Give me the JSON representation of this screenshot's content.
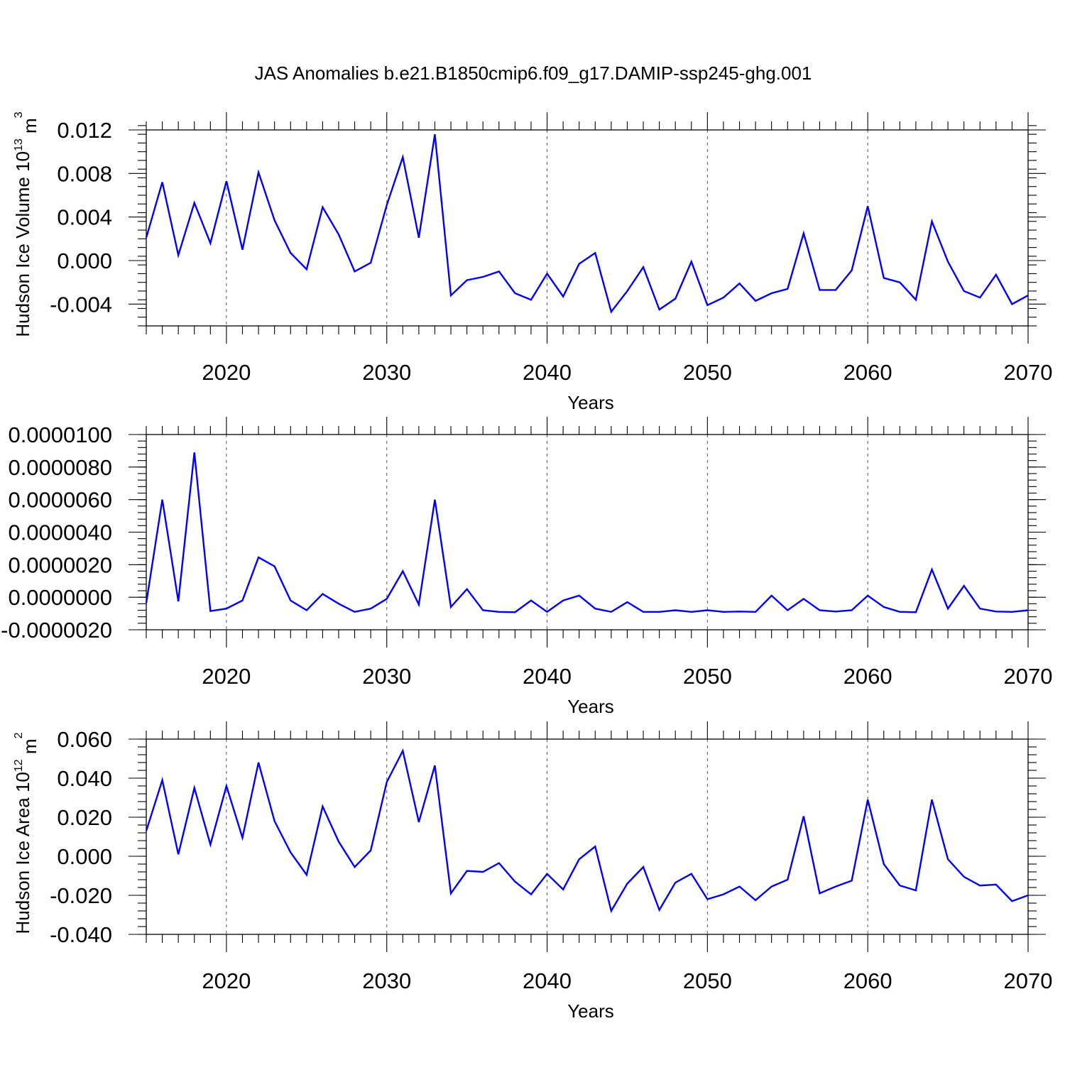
{
  "title": "JAS Anomalies b.e21.B1850cmip6.f09_g17.DAMIP-ssp245-ghg.001",
  "colors": {
    "line": "#0000ff",
    "axis": "#000000",
    "grid": "#555555"
  },
  "chart_data": [
    {
      "type": "line",
      "xlabel": "Years",
      "ylabel": "Hudson Ice Volume 10",
      "ylabel_exp": "13",
      "ylabel_unit": " m",
      "ylabel_unit_exp": "3",
      "xlim": [
        2015,
        2070
      ],
      "ylim": [
        -0.006,
        0.012
      ],
      "xticks": [
        2020,
        2030,
        2040,
        2050,
        2060,
        2070
      ],
      "xtick_labels": [
        "2020",
        "2030",
        "2040",
        "2050",
        "2060",
        "2070"
      ],
      "yticks": [
        -0.004,
        0.0,
        0.004,
        0.008,
        0.012
      ],
      "ytick_labels": [
        "-0.004",
        "0.000",
        "0.004",
        "0.008",
        "0.012"
      ],
      "grid": "vertical dashed at major x ticks",
      "series": [
        {
          "x": [
            2015,
            2016,
            2017,
            2018,
            2019,
            2020,
            2021,
            2022,
            2023,
            2024,
            2025,
            2026,
            2027,
            2028,
            2029,
            2030,
            2031,
            2032,
            2033,
            2034,
            2035,
            2036,
            2037,
            2038,
            2039,
            2040,
            2041,
            2042,
            2043,
            2044,
            2045,
            2046,
            2047,
            2048,
            2049,
            2050,
            2051,
            2052,
            2053,
            2054,
            2055,
            2056,
            2057,
            2058,
            2059,
            2060,
            2061,
            2062,
            2063,
            2064,
            2065,
            2066,
            2067,
            2068,
            2069,
            2070
          ],
          "y": [
            0.0021,
            0.0072,
            0.0005,
            0.0053,
            0.0016,
            0.0073,
            0.001,
            0.0081,
            0.0037,
            0.0007,
            -0.0008,
            0.0049,
            0.0024,
            -0.001,
            -0.0002,
            0.0051,
            0.0095,
            0.0021,
            0.0116,
            -0.0032,
            -0.0018,
            -0.0015,
            -0.001,
            -0.003,
            -0.0036,
            -0.0012,
            -0.0033,
            -0.0003,
            0.0007,
            -0.0047,
            -0.0028,
            -0.0006,
            -0.0045,
            -0.0035,
            -0.0001,
            -0.0041,
            -0.0034,
            -0.0021,
            -0.0037,
            -0.003,
            -0.0026,
            0.0025,
            -0.0027,
            -0.0027,
            -0.0009,
            0.005,
            -0.0016,
            -0.002,
            -0.0036,
            0.0036,
            -0.0001,
            -0.0028,
            -0.0034,
            -0.0013,
            -0.004,
            -0.0032
          ]
        }
      ]
    },
    {
      "type": "line",
      "xlabel": "Years",
      "ylabel": "",
      "xlim": [
        2015,
        2070
      ],
      "ylim": [
        -2e-06,
        1e-05
      ],
      "xticks": [
        2020,
        2030,
        2040,
        2050,
        2060,
        2070
      ],
      "xtick_labels": [
        "2020",
        "2030",
        "2040",
        "2050",
        "2060",
        "2070"
      ],
      "yticks": [
        -2e-06,
        0.0,
        2e-06,
        4e-06,
        6e-06,
        8e-06,
        1e-05
      ],
      "ytick_labels": [
        "-0.0000020",
        "0.0000000",
        "0.0000020",
        "0.0000040",
        "0.0000060",
        "0.0000080",
        "0.0000100"
      ],
      "grid": "vertical dashed at major x ticks",
      "series": [
        {
          "x": [
            2015,
            2016,
            2017,
            2018,
            2019,
            2020,
            2021,
            2022,
            2023,
            2024,
            2025,
            2026,
            2027,
            2028,
            2029,
            2030,
            2031,
            2032,
            2033,
            2034,
            2035,
            2036,
            2037,
            2038,
            2039,
            2040,
            2041,
            2042,
            2043,
            2044,
            2045,
            2046,
            2047,
            2048,
            2049,
            2050,
            2051,
            2052,
            2053,
            2054,
            2055,
            2056,
            2057,
            2058,
            2059,
            2060,
            2061,
            2062,
            2063,
            2064,
            2065,
            2066,
            2067,
            2068,
            2069,
            2070
          ],
          "y": [
            -3.5e-07,
            6e-06,
            -2.5e-07,
            8.9e-06,
            -8.5e-07,
            -7e-07,
            -2e-07,
            2.45e-06,
            1.9e-06,
            -2e-07,
            -8e-07,
            2e-07,
            -4e-07,
            -9e-07,
            -7e-07,
            -1e-07,
            1.6e-06,
            -4.5e-07,
            6e-06,
            -6e-07,
            5e-07,
            -8e-07,
            -9e-07,
            -9.2e-07,
            -2e-07,
            -9e-07,
            -2e-07,
            1e-07,
            -7e-07,
            -9e-07,
            -3e-07,
            -9e-07,
            -9e-07,
            -8e-07,
            -9e-07,
            -8e-07,
            -9e-07,
            -8.8e-07,
            -9e-07,
            1e-07,
            -8e-07,
            -1e-07,
            -8e-07,
            -8.8e-07,
            -8e-07,
            1e-07,
            -6e-07,
            -9e-07,
            -9.2e-07,
            1.7e-06,
            -7e-07,
            7e-07,
            -7e-07,
            -8.8e-07,
            -9e-07,
            -8e-07
          ]
        }
      ]
    },
    {
      "type": "line",
      "xlabel": "Years",
      "ylabel": "Hudson Ice Area 10",
      "ylabel_exp": "12",
      "ylabel_unit": " m",
      "ylabel_unit_exp": "2",
      "xlim": [
        2015,
        2070
      ],
      "ylim": [
        -0.04,
        0.06
      ],
      "xticks": [
        2020,
        2030,
        2040,
        2050,
        2060,
        2070
      ],
      "xtick_labels": [
        "2020",
        "2030",
        "2040",
        "2050",
        "2060",
        "2070"
      ],
      "yticks": [
        -0.04,
        -0.02,
        0.0,
        0.02,
        0.04,
        0.06
      ],
      "ytick_labels": [
        "-0.040",
        "-0.020",
        "0.000",
        "0.020",
        "0.040",
        "0.060"
      ],
      "grid": "vertical dashed at major x ticks",
      "series": [
        {
          "x": [
            2015,
            2016,
            2017,
            2018,
            2019,
            2020,
            2021,
            2022,
            2023,
            2024,
            2025,
            2026,
            2027,
            2028,
            2029,
            2030,
            2031,
            2032,
            2033,
            2034,
            2035,
            2036,
            2037,
            2038,
            2039,
            2040,
            2041,
            2042,
            2043,
            2044,
            2045,
            2046,
            2047,
            2048,
            2049,
            2050,
            2051,
            2052,
            2053,
            2054,
            2055,
            2056,
            2057,
            2058,
            2059,
            2060,
            2061,
            2062,
            2063,
            2064,
            2065,
            2066,
            2067,
            2068,
            2069,
            2070
          ],
          "y": [
            0.013,
            0.039,
            0.001,
            0.035,
            0.006,
            0.036,
            0.0095,
            0.048,
            0.018,
            0.002,
            -0.0095,
            0.0255,
            0.0075,
            -0.0055,
            0.003,
            0.038,
            0.054,
            0.0175,
            0.0465,
            -0.019,
            -0.0075,
            -0.008,
            -0.0035,
            -0.013,
            -0.0195,
            -0.009,
            -0.017,
            -0.0015,
            0.005,
            -0.028,
            -0.014,
            -0.0055,
            -0.0275,
            -0.0135,
            -0.009,
            -0.022,
            -0.0195,
            -0.0155,
            -0.0225,
            -0.0155,
            -0.012,
            0.0205,
            -0.019,
            -0.0155,
            -0.0125,
            0.029,
            -0.004,
            -0.015,
            -0.0175,
            0.029,
            -0.0015,
            -0.0105,
            -0.015,
            -0.0145,
            -0.023,
            -0.02
          ]
        }
      ]
    }
  ]
}
